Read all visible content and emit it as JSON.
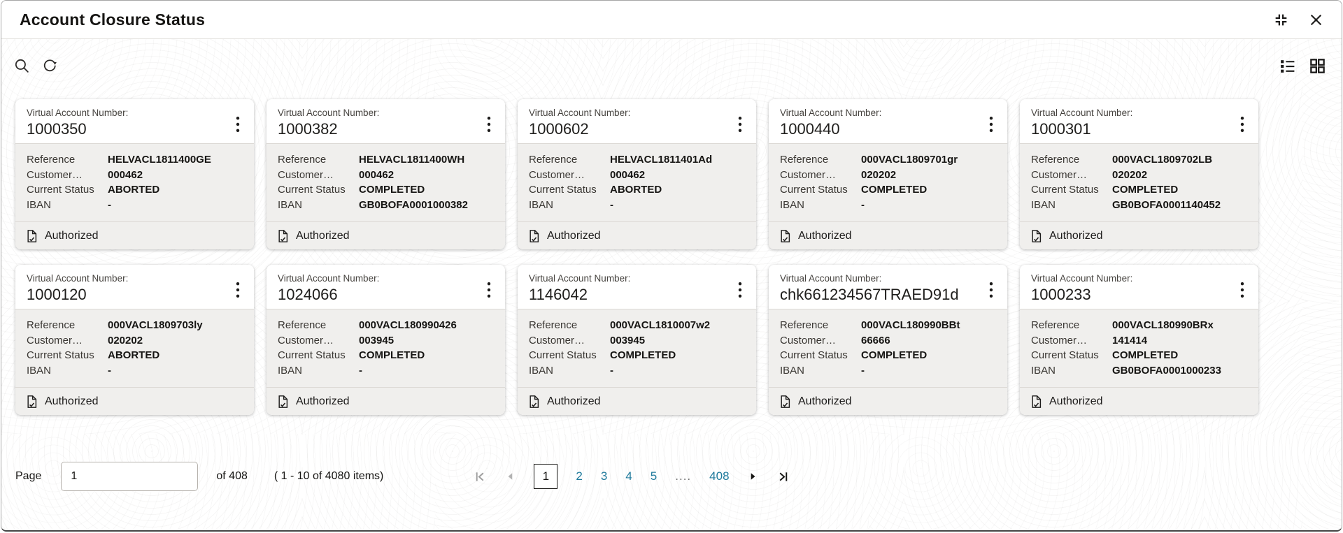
{
  "header": {
    "title": "Account Closure Status"
  },
  "icons": {
    "search": "magnifier",
    "refresh": "circular-arrow",
    "window_restore": "exit-fullscreen-brackets",
    "window_close": "x-cross",
    "list_view": "bulleted-list",
    "grid_view": "grid-2x2",
    "kebab": "vertical-ellipsis",
    "authorized": "document-check",
    "first_page": "bar-chevron-left",
    "prev_page": "triangle-left",
    "next_page": "triangle-right",
    "last_page": "chevron-right-bar"
  },
  "card_labels": {
    "account": "Virtual Account Number:",
    "fields": [
      "Reference",
      "Customer…",
      "Current Status",
      "IBAN"
    ],
    "authorized": "Authorized"
  },
  "cards": [
    {
      "account": "1000350",
      "values": [
        "HELVACL1811400GE",
        "000462",
        "ABORTED",
        "-"
      ]
    },
    {
      "account": "1000382",
      "values": [
        "HELVACL1811400WH",
        "000462",
        "COMPLETED",
        "GB0BOFA0001000382"
      ]
    },
    {
      "account": "1000602",
      "values": [
        "HELVACL1811401Ad",
        "000462",
        "ABORTED",
        "-"
      ]
    },
    {
      "account": "1000440",
      "values": [
        "000VACL1809701gr",
        "020202",
        "COMPLETED",
        "-"
      ]
    },
    {
      "account": "1000301",
      "values": [
        "000VACL1809702LB",
        "020202",
        "COMPLETED",
        "GB0BOFA0001140452"
      ]
    },
    {
      "account": "1000120",
      "values": [
        "000VACL1809703ly",
        "020202",
        "ABORTED",
        "-"
      ]
    },
    {
      "account": "1024066",
      "values": [
        "000VACL180990426",
        "003945",
        "COMPLETED",
        "-"
      ]
    },
    {
      "account": "1146042",
      "values": [
        "000VACL1810007w2",
        "003945",
        "COMPLETED",
        "-"
      ]
    },
    {
      "account": "chk661234567TRAED91d",
      "values": [
        "000VACL180990BBt",
        "66666",
        "COMPLETED",
        "-"
      ]
    },
    {
      "account": "1000233",
      "values": [
        "000VACL180990BRx",
        "141414",
        "COMPLETED",
        "GB0BOFA0001000233"
      ]
    }
  ],
  "pagination": {
    "page_label": "Page",
    "page_value": "1",
    "total_label": "of 408",
    "items_summary": "( 1 - 10 of 4080 items)",
    "pages": [
      {
        "label": "1",
        "current": true
      },
      {
        "label": "2"
      },
      {
        "label": "3"
      },
      {
        "label": "4"
      },
      {
        "label": "5"
      },
      {
        "label": "....",
        "ellipsis": true
      },
      {
        "label": "408"
      }
    ]
  },
  "colors": {
    "text": "#161513",
    "link": "#1f7a9c",
    "card_body_bg": "#f0efed",
    "divider": "#dcd9d5",
    "disabled_icon": "#b3b3b3"
  }
}
